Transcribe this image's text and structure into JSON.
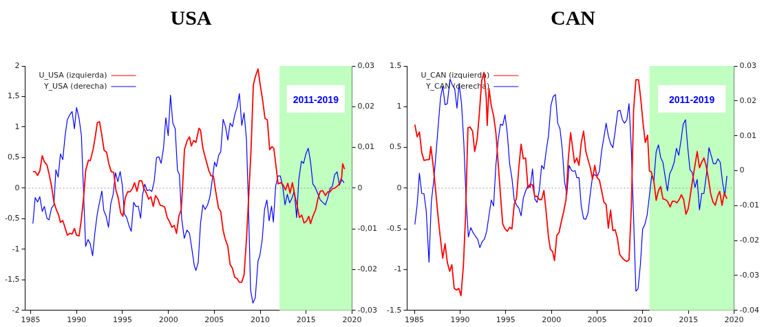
{
  "chart_data": [
    {
      "type": "line",
      "title": "USA",
      "xlim": [
        1984.4,
        2020
      ],
      "xticks": [
        1985,
        1990,
        1995,
        2000,
        2005,
        2010,
        2015,
        2020
      ],
      "ylim": [
        -2,
        2
      ],
      "yticks": [
        2,
        {
          "value": 1.5,
          "label": "1,5"
        },
        1,
        {
          "value": 0.5,
          "label": "0,5"
        },
        0,
        {
          "value": -0.5,
          "label": "-0,5"
        },
        -1,
        {
          "value": -1.5,
          "label": "-1,5"
        },
        -2
      ],
      "y2lim": [
        -0.03,
        0.03
      ],
      "y2ticks": [
        {
          "value": 0.03,
          "label": "0,03"
        },
        {
          "value": 0.02,
          "label": "0,02"
        },
        {
          "value": 0.01,
          "label": "0,01"
        },
        0,
        {
          "value": -0.01,
          "label": "-0,01"
        },
        {
          "value": -0.02,
          "label": "-0,02"
        },
        {
          "value": -0.03,
          "label": "-0,03"
        }
      ],
      "grid": false,
      "legend": "top left",
      "ref_lines": [
        {
          "axis": "y",
          "value": 0,
          "color": "#999999",
          "line_style": "dotted"
        }
      ],
      "bands": [
        {
          "axis": "x",
          "from": 2012.1,
          "to": 2020,
          "label": "2011-2019",
          "color": "#c0ffc0"
        }
      ],
      "series": [
        {
          "name": "U_USA (izquierda)",
          "color": "#ff0000",
          "axis": "y",
          "x": [
            1985.25,
            1985.5,
            1985.76,
            1986,
            1986.27,
            1986.5,
            1986.78,
            1987,
            1987.28,
            1987.54,
            1987.8,
            1988.05,
            1988.25,
            1988.5,
            1988.76,
            1989,
            1989.26,
            1989.52,
            1989.77,
            1990,
            1990.28,
            1990.53,
            1990.79,
            1991,
            1991.3,
            1991.5,
            1991.8,
            1992.06,
            1992.26,
            1992.5,
            1992.76,
            1993,
            1993.27,
            1993.5,
            1993.78,
            1994.04,
            1994.3,
            1994.54,
            1994.8,
            1995.05,
            1995.3,
            1995.56,
            1995.8,
            1996.07,
            1996.32,
            1996.58,
            1996.83,
            1997.1,
            1997.35,
            1997.6,
            1997.85,
            1998.1,
            1998.35,
            1998.6,
            1998.86,
            1999.1,
            1999.37,
            1999.6,
            1999.87,
            2000.1,
            2000.38,
            2000.64,
            2000.89,
            2001.14,
            2001.4,
            2001.55,
            2001.75,
            2002.05,
            2002.3,
            2002.5,
            2002.75,
            2003,
            2003.33,
            2003.5,
            2003.76,
            2004.09,
            2004.4,
            2004.65,
            2004.9,
            2005.15,
            2005.46,
            2005.7,
            2005.96,
            2006.2,
            2006.47,
            2006.72,
            2006.97,
            2007.23,
            2007.48,
            2007.73,
            2007.98,
            2008.24,
            2008.5,
            2008.75,
            2009,
            2009.25,
            2009.5,
            2009.76,
            2010,
            2010.27,
            2010.52,
            2010.77,
            2011.03,
            2011.28,
            2011.48,
            2011.73,
            2011.94,
            2012.24,
            2012.5,
            2012.75,
            2013,
            2013.25,
            2013.5,
            2013.76,
            2014,
            2014.27,
            2014.52,
            2014.77,
            2015.03,
            2015.28,
            2015.48,
            2015.73,
            2016.04,
            2016.3,
            2016.54,
            2016.8,
            2017.1,
            2017.35,
            2017.6,
            2017.86,
            2018.1,
            2018.37,
            2018.62,
            2018.87,
            2018.97,
            2019.18
          ],
          "values": [
            0.27,
            0.27,
            0.21,
            0.28,
            0.53,
            0.43,
            0.38,
            0.24,
            0.03,
            -0.23,
            -0.35,
            -0.44,
            -0.56,
            -0.53,
            -0.65,
            -0.77,
            -0.74,
            -0.75,
            -0.66,
            -0.77,
            -0.78,
            -0.5,
            -0.12,
            0.29,
            0.46,
            0.45,
            0.63,
            0.86,
            1.07,
            1.09,
            0.86,
            0.62,
            0.59,
            0.41,
            0.27,
            0.26,
            -0.04,
            -0.16,
            -0.4,
            -0.46,
            -0.16,
            -0.06,
            -0.06,
            -0.01,
            0.09,
            -0.05,
            0.12,
            0.12,
            -0.01,
            -0.08,
            -0.18,
            -0.14,
            -0.3,
            -0.12,
            -0.18,
            -0.28,
            -0.29,
            -0.31,
            -0.48,
            -0.54,
            -0.64,
            -0.61,
            -0.74,
            -0.46,
            -0.35,
            0.03,
            0.63,
            0.78,
            0.84,
            0.69,
            0.78,
            0.75,
            0.98,
            0.95,
            0.65,
            0.46,
            0.29,
            0.2,
            0.2,
            -0.05,
            -0.33,
            -0.38,
            -0.69,
            -0.84,
            -0.95,
            -1.25,
            -1.31,
            -1.46,
            -1.48,
            -1.54,
            -1.54,
            -1.42,
            -0.84,
            -0.12,
            0.63,
            1.69,
            1.84,
            1.95,
            1.69,
            1.43,
            1.14,
            1.12,
            0.63,
            0.68,
            0.65,
            0.35,
            0.07,
            0.09,
            0.05,
            -0.03,
            0.08,
            -0.08,
            0.09,
            -0.12,
            -0.27,
            -0.48,
            -0.44,
            -0.57,
            -0.54,
            -0.46,
            -0.58,
            -0.46,
            -0.35,
            -0.16,
            -0.05,
            -0.04,
            -0.12,
            -0.06,
            -0.06,
            -0.01,
            0,
            0.03,
            0.07,
            0.18,
            0.4,
            0.31
          ]
        },
        {
          "name": "Y_USA (derecha)",
          "color": "#0000ff",
          "axis": "y2",
          "x": [
            1985.25,
            1985.5,
            1985.76,
            1986,
            1986.27,
            1986.5,
            1986.78,
            1987,
            1987.28,
            1987.54,
            1987.75,
            1988,
            1988.25,
            1988.5,
            1988.76,
            1989,
            1989.26,
            1989.52,
            1989.77,
            1990,
            1990.28,
            1990.53,
            1990.99,
            1991.25,
            1991.5,
            1991.75,
            1992,
            1992.26,
            1992.5,
            1992.76,
            1992.97,
            1993.22,
            1993.48,
            1993.73,
            1993.99,
            1994.24,
            1994.5,
            1994.75,
            1995,
            1995.2,
            1995.46,
            1995.71,
            1995.96,
            1996.22,
            1996.47,
            1996.72,
            1996.98,
            1997.18,
            1997.43,
            1997.69,
            1997.94,
            1998.2,
            1998.45,
            1998.71,
            1998.96,
            1999.21,
            1999.47,
            1999.72,
            1999.98,
            2000.23,
            2000.48,
            2000.74,
            2000.99,
            2001.2,
            2001.45,
            2001.73,
            2002.02,
            2002.3,
            2002.55,
            2002.82,
            2003,
            2003.25,
            2003.5,
            2003.76,
            2004,
            2004.27,
            2004.52,
            2004.77,
            2005.03,
            2005.23,
            2005.48,
            2005.7,
            2005.96,
            2006.22,
            2006.47,
            2006.72,
            2006.97,
            2007.23,
            2007.48,
            2007.73,
            2007.99,
            2008.24,
            2008.5,
            2008.7,
            2008.95,
            2009.2,
            2009.46,
            2009.76,
            2009.96,
            2010.22,
            2010.47,
            2010.72,
            2010.97,
            2011.23,
            2011.43,
            2011.68,
            2011.94,
            2012.19,
            2012.44,
            2012.7,
            2012.95,
            2013.2,
            2013.46,
            2013.7,
            2013.96,
            2014.2,
            2014.48,
            2014.72,
            2014.97,
            2015.23,
            2015.48,
            2015.73,
            2015.99,
            2016.24,
            2016.54,
            2016.8,
            2017.1,
            2017.35,
            2017.6,
            2017.86,
            2018.1,
            2018.37,
            2018.62,
            2018.87,
            2019.13
          ],
          "values": [
            -0.0087,
            -0.0023,
            -0.0034,
            -0.0021,
            -0.0057,
            -0.0045,
            -0.0074,
            -0.0078,
            -0.0049,
            -0.0041,
            0.0045,
            0.0027,
            0.0084,
            0.007,
            0.0129,
            0.0168,
            0.018,
            0.0188,
            0.0146,
            0.0198,
            0.0171,
            0.0129,
            -0.0143,
            -0.0126,
            -0.0137,
            -0.0166,
            -0.0109,
            -0.0063,
            -0.0035,
            -0.0007,
            -0.0055,
            -0.0069,
            -0.0096,
            -0.0038,
            -0.0015,
            0.0038,
            0.0016,
            0.0041,
            0.0005,
            -0.0063,
            -0.0072,
            -0.0092,
            -0.0106,
            -0.0035,
            -0.0045,
            -0.0044,
            -0.0074,
            -0.0018,
            0.001,
            -0.0006,
            -0.0004,
            -0.0008,
            0.0016,
            0.0075,
            0.0077,
            0.0061,
            0.0098,
            0.0173,
            0.0129,
            0.0228,
            0.016,
            0.0146,
            0.0044,
            0.0033,
            -0.0075,
            -0.0123,
            -0.0103,
            -0.0111,
            -0.0148,
            -0.019,
            -0.0202,
            -0.0182,
            -0.0086,
            -0.0041,
            -0.0052,
            -0.0041,
            -0.0021,
            0.0019,
            0.0064,
            0.0053,
            0.0081,
            0.0089,
            0.0169,
            0.0151,
            0.0118,
            0.016,
            0.0151,
            0.018,
            0.0199,
            0.0232,
            0.0154,
            0.0185,
            0.012,
            -0.0029,
            -0.025,
            -0.0282,
            -0.0269,
            -0.0179,
            -0.0165,
            -0.0125,
            -0.0052,
            -0.0029,
            -0.008,
            -0.0044,
            -0.0083,
            0.0005,
            0.003,
            0.003,
            0.0005,
            -0.0041,
            -0.0015,
            -0.0036,
            -0.0024,
            -0.0007,
            -0.0072,
            0.0021,
            0.0066,
            0.0061,
            0.0084,
            0.0098,
            0.0064,
            0.001,
            0.0002,
            -0.0012,
            -0.0029,
            -0.0035,
            -0.0041,
            -0.0024,
            -0.0001,
            0.0005,
            0.0033,
            0.004,
            0.0007,
            0.0021,
            0.0013
          ]
        }
      ]
    },
    {
      "type": "line",
      "title": "CAN",
      "xlim": [
        1984.2,
        2020
      ],
      "xticks": [
        1985,
        1990,
        1995,
        2000,
        2005,
        2010,
        2015,
        2020
      ],
      "ylim": [
        -1.5,
        1.5
      ],
      "yticks": [
        1.5,
        1,
        0.5,
        0,
        -0.5,
        -1,
        -1.5
      ],
      "y2lim": [
        -0.04,
        0.03
      ],
      "y2ticks": [
        0.03,
        0.02,
        0.01,
        0,
        -0.01,
        -0.02,
        -0.03,
        -0.04
      ],
      "grid": false,
      "legend": "top left",
      "ref_lines": [
        {
          "axis": "y",
          "value": 0,
          "color": "#999999",
          "line_style": "dotted"
        }
      ],
      "bands": [
        {
          "axis": "x",
          "from": 2010.74,
          "to": 2020,
          "label": "2011-2019",
          "color": "#c0ffc0"
        }
      ],
      "series": [
        {
          "name": "U_CAN (izquierda)",
          "color": "#ff0000",
          "axis": "y",
          "x": [
            1985.05,
            1985.3,
            1985.55,
            1985.8,
            1986.05,
            1986.38,
            1986.63,
            1986.8,
            1987.05,
            1987.3,
            1987.56,
            1987.8,
            1988.1,
            1988.36,
            1988.6,
            1988.86,
            1989.1,
            1989.36,
            1989.6,
            1989.86,
            1990.1,
            1990.36,
            1990.6,
            1990.86,
            1991.1,
            1991.37,
            1991.6,
            1991.87,
            1992.1,
            1992.37,
            1992.62,
            1992.87,
            1992.97,
            1993.17,
            1993.42,
            1993.67,
            1993.92,
            1994.17,
            1994.42,
            1994.67,
            1994.92,
            1995.17,
            1995.42,
            1995.68,
            1995.93,
            1996.18,
            1996.43,
            1996.68,
            1996.93,
            1997.18,
            1997.43,
            1997.68,
            1997.93,
            1998.18,
            1998.43,
            1998.68,
            1998.93,
            1999.18,
            1999.43,
            1999.68,
            1999.89,
            2000.14,
            2000.34,
            2000.59,
            2000.84,
            2001.09,
            2001.34,
            2001.6,
            2001.84,
            2002.1,
            2002.34,
            2002.53,
            2002.78,
            2003.02,
            2003.27,
            2003.52,
            2003.77,
            2004.01,
            2004.26,
            2004.5,
            2004.75,
            2005,
            2005.25,
            2005.5,
            2005.74,
            2005.99,
            2006.23,
            2006.48,
            2006.73,
            2006.98,
            2007.22,
            2007.47,
            2007.72,
            2007.96,
            2008.26,
            2008.5,
            2008.75,
            2009,
            2009.25,
            2009.54,
            2009.79,
            2010.04,
            2010.28,
            2010.53,
            2010.73,
            2010.93,
            2011.22,
            2011.47,
            2011.72,
            2011.96,
            2012.21,
            2012.46,
            2012.7,
            2013,
            2013.25,
            2013.49,
            2013.74,
            2013.99,
            2014.23,
            2014.48,
            2014.73,
            2014.98,
            2015.22,
            2015.47,
            2015.72,
            2015.96,
            2016.21,
            2016.46,
            2016.7,
            2016.95,
            2017.2,
            2017.44,
            2017.69,
            2017.94,
            2018.19,
            2018.43,
            2018.68,
            2018.93,
            2019.22
          ],
          "values": [
            0.78,
            0.63,
            0.69,
            0.44,
            0.34,
            0.35,
            0.35,
            0.51,
            0.28,
            0,
            -0.31,
            -0.57,
            -0.86,
            -0.68,
            -0.91,
            -1.02,
            -0.94,
            -1.23,
            -1.25,
            -1.23,
            -1.32,
            -0.96,
            -0.34,
            0.74,
            0.75,
            0.7,
            0.45,
            0.6,
            0.9,
            1.32,
            1.42,
            1.1,
            0.77,
            1.22,
            1.01,
            0.89,
            0.68,
            0.31,
            -0.08,
            -0.44,
            -0.5,
            -0.53,
            -0.48,
            -0.5,
            -0.2,
            -0.12,
            0.25,
            0.54,
            0.36,
            0.37,
            0,
            0.05,
            0.04,
            -0.1,
            -0.1,
            -0.14,
            -0.14,
            -0.03,
            -0.3,
            -0.6,
            -0.75,
            -0.78,
            -0.89,
            -0.58,
            -0.54,
            -0.41,
            -0.29,
            -0.14,
            0.34,
            0.68,
            0.48,
            0.31,
            0.37,
            0.28,
            0.56,
            0.7,
            0.45,
            0.35,
            0.25,
            0.11,
            0.28,
            0.13,
            0.1,
            -0.03,
            -0.17,
            -0.2,
            -0.49,
            -0.27,
            -0.52,
            -0.51,
            -0.61,
            -0.81,
            -0.85,
            -0.88,
            -0.9,
            -0.88,
            -0.23,
            0.96,
            1.33,
            1.33,
            1.09,
            0.79,
            0.56,
            0.65,
            0.21,
            0.2,
            0.08,
            -0.15,
            -0.03,
            0.02,
            -0.13,
            -0.14,
            -0.16,
            -0.23,
            -0.16,
            -0.16,
            -0.18,
            -0.14,
            -0.08,
            -0.14,
            -0.32,
            -0.25,
            -0.08,
            0.11,
            0.28,
            0.45,
            0.25,
            0.32,
            0.37,
            0.27,
            0.11,
            -0.07,
            -0.17,
            -0.21,
            -0.1,
            -0.04,
            -0.21,
            -0.06,
            -0.13
          ]
        },
        {
          "name": "Y_CAN (derecha)",
          "color": "#0000ff",
          "axis": "y2",
          "x": [
            1985.05,
            1985.3,
            1985.55,
            1985.8,
            1986.05,
            1986.3,
            1986.6,
            1986.85,
            1987.1,
            1987.36,
            1987.6,
            1987.86,
            1988.1,
            1988.36,
            1988.6,
            1988.9,
            1989.16,
            1989.41,
            1989.66,
            1989.9,
            1990.16,
            1990.41,
            1990.66,
            1990.91,
            1991.17,
            1991.42,
            1991.67,
            1991.92,
            1992.17,
            1992.42,
            1992.67,
            1992.92,
            1993.17,
            1993.42,
            1993.67,
            1993.92,
            1994.17,
            1994.42,
            1994.67,
            1994.92,
            1995.17,
            1995.42,
            1995.68,
            1995.93,
            1996.18,
            1996.43,
            1996.68,
            1996.93,
            1997.18,
            1997.43,
            1997.68,
            1997.93,
            1998.18,
            1998.43,
            1998.68,
            1998.93,
            1999.18,
            1999.43,
            1999.68,
            1999.94,
            2000.19,
            2000.44,
            2000.69,
            2000.94,
            2001.19,
            2001.44,
            2001.69,
            2001.94,
            2002.2,
            2002.4,
            2002.6,
            2002.78,
            2003.02,
            2003.27,
            2003.52,
            2003.77,
            2004.01,
            2004.26,
            2004.5,
            2004.75,
            2005,
            2005.25,
            2005.5,
            2005.74,
            2005.99,
            2006.23,
            2006.48,
            2006.73,
            2006.98,
            2007.27,
            2007.52,
            2007.77,
            2008,
            2008.26,
            2008.5,
            2008.75,
            2009,
            2009.25,
            2009.49,
            2009.74,
            2009.99,
            2010.23,
            2010.48,
            2010.73,
            2010.98,
            2011.22,
            2011.47,
            2011.72,
            2011.96,
            2012.21,
            2012.46,
            2012.7,
            2012.95,
            2013.2,
            2013.44,
            2013.69,
            2013.94,
            2014.19,
            2014.43,
            2014.68,
            2014.93,
            2015.17,
            2015.42,
            2015.72,
            2015.96,
            2016.21,
            2016.46,
            2016.7,
            2017,
            2017.25,
            2017.49,
            2017.74,
            2017.99,
            2018.23,
            2018.48,
            2018.73,
            2018.98,
            2019.22
          ],
          "values": [
            -0.0154,
            -0.0098,
            -0.0007,
            -0.0065,
            -0.0066,
            -0.0117,
            -0.0262,
            -0.0091,
            -0.0032,
            0.0047,
            0.0127,
            0.0209,
            0.0242,
            0.0189,
            0.0192,
            0.0262,
            0.0245,
            0.0235,
            0.0179,
            0.0249,
            0.0192,
            0.008,
            -0.0084,
            -0.019,
            -0.0163,
            -0.0177,
            -0.0187,
            -0.0196,
            -0.022,
            -0.0203,
            -0.0196,
            -0.0173,
            -0.0127,
            -0.0084,
            -0.0101,
            0.0015,
            0.0087,
            0.0133,
            0.013,
            0.016,
            0.0107,
            0.0021,
            -0.0022,
            -0.0084,
            -0.0098,
            -0.0107,
            -0.0129,
            -0.0078,
            -0.0058,
            -0.0042,
            -0.0048,
            0.0005,
            -0.0081,
            -0.0091,
            -0.0055,
            0.0015,
            0.0005,
            0.0057,
            0.01,
            0.0186,
            0.0212,
            0.0218,
            0.0136,
            0.012,
            0.0061,
            -0.0032,
            -0.0068,
            0.0015,
            0.0001,
            -0.0002,
            0,
            -0.002,
            -0.002,
            -0.0101,
            -0.0137,
            -0.0139,
            -0.0121,
            -0.0065,
            -0.0017,
            -0.0011,
            -0.0017,
            -0.0002,
            0.0057,
            0.0094,
            0.0136,
            0.01,
            0.0077,
            0.0066,
            0.0113,
            0.0171,
            0.0173,
            0.0146,
            0.0136,
            0.0146,
            0.0192,
            0.0061,
            -0.0137,
            -0.0345,
            -0.0338,
            -0.0269,
            -0.0167,
            -0.0154,
            -0.0127,
            -0.0071,
            -0.0015,
            -0.0028,
            0.0054,
            0.0074,
            0.0038,
            0.0024,
            -0.0018,
            -0.0058,
            -0.0009,
            0.0005,
            0.0024,
            0.0064,
            0.0044,
            0.0087,
            0.0133,
            0.0146,
            0.0066,
            0.0003,
            -0.0005,
            -0.0048,
            -0.0025,
            -0.0112,
            -0.0065,
            -0.0065,
            -0.0005,
            0.0066,
            0.0044,
            0.002,
            0.002,
            0.0034,
            0.0024,
            -0.0032,
            -0.0071,
            -0.0015
          ]
        }
      ]
    }
  ]
}
